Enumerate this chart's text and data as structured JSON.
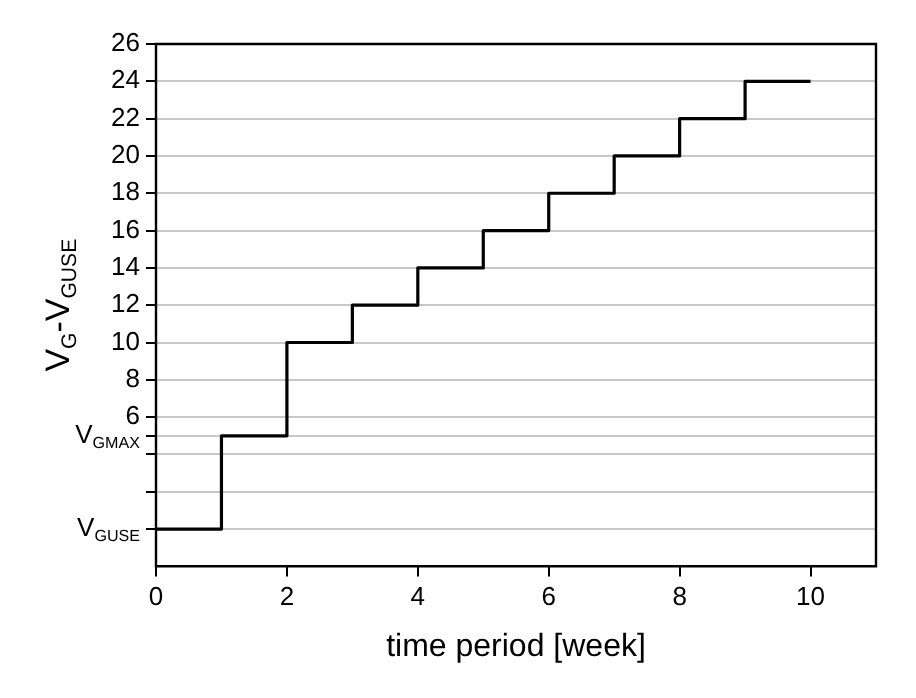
{
  "chart_data": {
    "type": "step",
    "xlabel": "time period [week]",
    "ylabel": "V$_{G}$-V$_{GUSE}$",
    "x": [
      0,
      1,
      2,
      3,
      4,
      5,
      6,
      7,
      8,
      9,
      10
    ],
    "series": [
      {
        "color": "#000000",
        "values": [
          0,
          5,
          10,
          12,
          14,
          16,
          18,
          20,
          22,
          24,
          24
        ]
      }
    ],
    "xlim": [
      0,
      11
    ],
    "xticks": [
      0,
      2,
      4,
      6,
      8,
      10
    ],
    "ylim": [
      -2,
      26
    ],
    "yticks": [
      {
        "value": 0,
        "label": "V$_{GUSE}$"
      },
      {
        "value": 2,
        "label": null
      },
      {
        "value": 4,
        "label": null
      },
      {
        "value": 5,
        "label": "V$_{GMAX}$"
      },
      6,
      8,
      10,
      12,
      14,
      16,
      18,
      20,
      22,
      24,
      26
    ],
    "grid": "y",
    "legend": false,
    "marker": "none",
    "line_style": "solid"
  }
}
